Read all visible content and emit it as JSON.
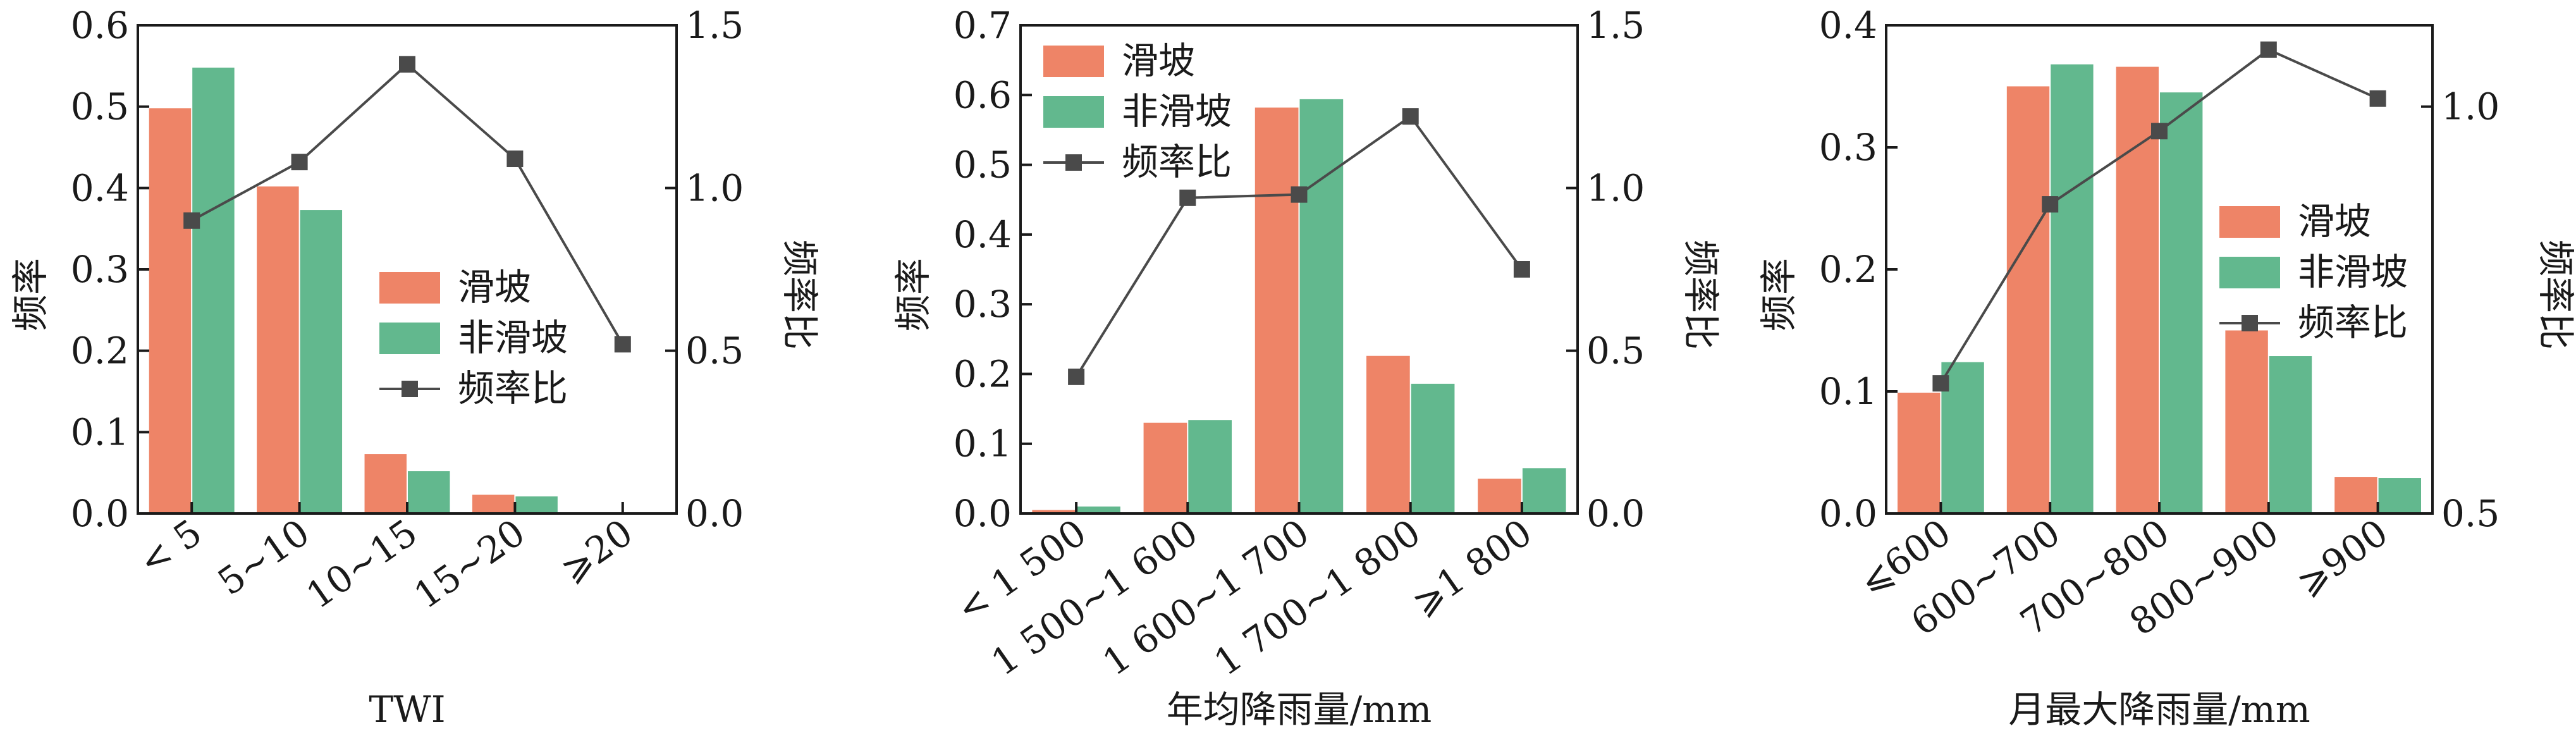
{
  "colors": {
    "landslide": "#EE8467",
    "non_landslide": "#62B88E",
    "ratio_line": "#4a4a4a",
    "axis": "#1a1a1a"
  },
  "chart_data": [
    {
      "type": "bar",
      "xlabel": "TWI",
      "ylabel": "频率",
      "y2label": "频率比",
      "ylim": [
        0,
        0.6
      ],
      "y2lim": [
        0.0,
        1.5
      ],
      "y_ticks": [
        "0.0",
        "0.1",
        "0.2",
        "0.3",
        "0.4",
        "0.5",
        "0.6"
      ],
      "y2_ticks": [
        "0.0",
        "0.5",
        "1.0",
        "1.5"
      ],
      "categories": [
        "< 5",
        "5~10",
        "10~15",
        "15~20",
        "⩾20"
      ],
      "series": [
        {
          "name": "滑坡",
          "kind": "bar",
          "values": [
            0.498,
            0.402,
            0.073,
            0.023,
            0.0
          ]
        },
        {
          "name": "非滑坡",
          "kind": "bar",
          "values": [
            0.548,
            0.373,
            0.052,
            0.021,
            0.0
          ]
        },
        {
          "name": "频率比",
          "kind": "line",
          "axis": "right",
          "values": [
            0.9,
            1.08,
            1.38,
            1.09,
            0.52
          ]
        }
      ],
      "legend": {
        "position": "center-right",
        "entries": [
          "滑坡",
          "非滑坡",
          "频率比"
        ]
      },
      "grid": false
    },
    {
      "type": "bar",
      "xlabel": "年均降雨量/mm",
      "ylabel": "频率",
      "y2label": "频率比",
      "ylim": [
        0,
        0.7
      ],
      "y2lim": [
        0.0,
        1.5
      ],
      "y_ticks": [
        "0.0",
        "0.1",
        "0.2",
        "0.3",
        "0.4",
        "0.5",
        "0.6",
        "0.7"
      ],
      "y2_ticks": [
        "0.0",
        "0.5",
        "1.0",
        "1.5"
      ],
      "categories": [
        "< 1 500",
        "1 500~1 600",
        "1 600~1 700",
        "1 700~1 800",
        "⩾1 800"
      ],
      "series": [
        {
          "name": "滑坡",
          "kind": "bar",
          "values": [
            0.005,
            0.13,
            0.582,
            0.226,
            0.05
          ]
        },
        {
          "name": "非滑坡",
          "kind": "bar",
          "values": [
            0.01,
            0.134,
            0.594,
            0.186,
            0.065
          ]
        },
        {
          "name": "频率比",
          "kind": "line",
          "axis": "right",
          "values": [
            0.42,
            0.97,
            0.98,
            1.22,
            0.75
          ]
        }
      ],
      "legend": {
        "position": "top-left",
        "entries": [
          "滑坡",
          "非滑坡",
          "频率比"
        ]
      },
      "grid": false
    },
    {
      "type": "bar",
      "xlabel": "月最大降雨量/mm",
      "ylabel": "频率",
      "y2label": "频率比",
      "ylim": [
        0,
        0.4
      ],
      "y2lim": [
        0.5,
        1.1
      ],
      "y_ticks": [
        "0.0",
        "0.1",
        "0.2",
        "0.3",
        "0.4"
      ],
      "y2_ticks": [
        "0.5",
        "1.0"
      ],
      "y2_tick_values": [
        0.5,
        1.0
      ],
      "categories": [
        "⩽600",
        "600~700",
        "700~800",
        "800~900",
        "⩾900"
      ],
      "series": [
        {
          "name": "滑坡",
          "kind": "bar",
          "values": [
            0.099,
            0.35,
            0.366,
            0.15,
            0.03
          ]
        },
        {
          "name": "非滑坡",
          "kind": "bar",
          "values": [
            0.124,
            0.368,
            0.345,
            0.129,
            0.029
          ]
        },
        {
          "name": "频率比",
          "kind": "line",
          "axis": "right",
          "values": [
            0.66,
            0.88,
            0.97,
            1.07,
            1.01
          ]
        }
      ],
      "legend": {
        "position": "center-right",
        "entries": [
          "滑坡",
          "非滑坡",
          "频率比"
        ]
      },
      "grid": false
    }
  ]
}
